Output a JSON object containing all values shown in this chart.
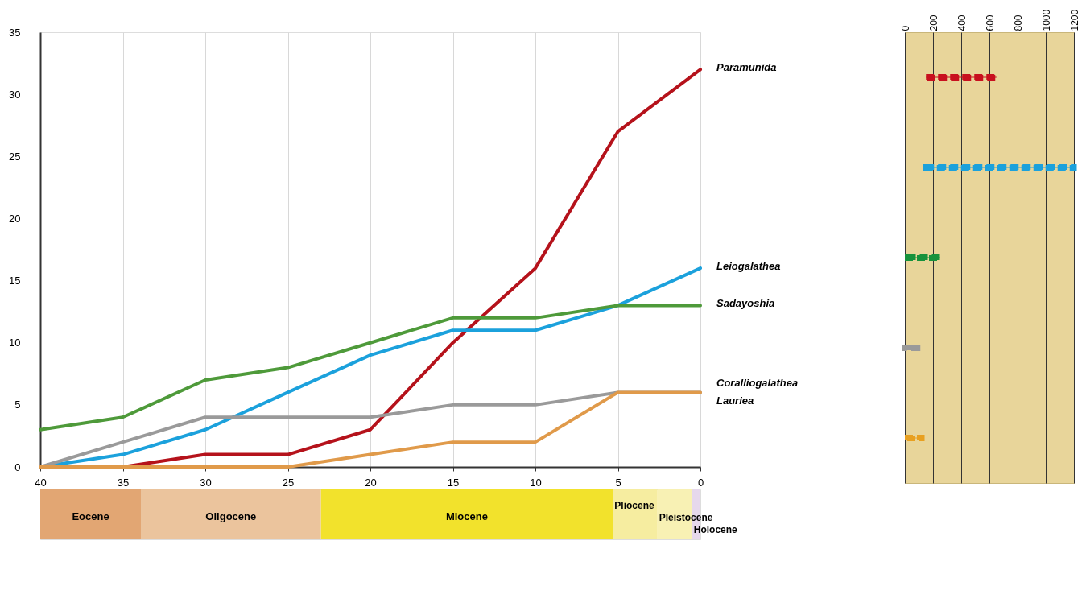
{
  "chart_data": [
    {
      "type": "line",
      "x": [
        40,
        35,
        30,
        25,
        20,
        15,
        10,
        5,
        0
      ],
      "xlim": [
        40,
        0
      ],
      "xticks": [
        40,
        35,
        30,
        25,
        20,
        15,
        10,
        5,
        0
      ],
      "ylim": [
        0,
        35
      ],
      "yticks": [
        0,
        5,
        10,
        15,
        20,
        25,
        30,
        35
      ],
      "grid": "x",
      "legend": false,
      "tick_labels": "y",
      "series": [
        {
          "name": "Paramunida",
          "color": "#b5121b",
          "values": [
            0,
            0,
            1,
            1,
            3,
            10,
            16,
            27,
            32
          ]
        },
        {
          "name": "Leiogalathea",
          "color": "#1ba1dc",
          "values": [
            0,
            1,
            3,
            6,
            9,
            11,
            11,
            13,
            16
          ]
        },
        {
          "name": "Sadayoshia",
          "color": "#4e9a3a",
          "values": [
            3,
            4,
            7,
            8,
            10,
            12,
            12,
            13,
            13
          ]
        },
        {
          "name": "Coralliogalathea",
          "color": "#9a9a9a",
          "values": [
            0,
            2,
            4,
            4,
            4,
            5,
            5,
            6,
            6
          ]
        },
        {
          "name": "Lauriea",
          "color": "#e09a4a",
          "values": [
            0,
            0,
            0,
            0,
            1,
            2,
            2,
            6,
            6
          ]
        }
      ]
    },
    {
      "type": "bar",
      "orientation": "horizontal",
      "stacked": true,
      "categories": [
        null
      ],
      "xlim": [
        40,
        0
      ],
      "xticks": [
        40,
        35,
        30,
        25,
        20,
        15,
        10,
        5,
        0
      ],
      "series": [
        {
          "name": "Holocene",
          "color": "#e6d8ec",
          "values": [
            0.5
          ]
        },
        {
          "name": "Pleistocene",
          "color": "#f8f1b4",
          "values": [
            2.1
          ]
        },
        {
          "name": "Pliocene",
          "color": "#f6eda0",
          "values": [
            2.7
          ]
        },
        {
          "name": "Miocene",
          "color": "#f2e22c",
          "values": [
            17.7
          ]
        },
        {
          "name": "Oligocene",
          "color": "#ebc49d",
          "values": [
            10.9
          ]
        },
        {
          "name": "Eocene",
          "color": "#e2a673",
          "values": [
            6.1
          ]
        }
      ]
    },
    {
      "type": "bar",
      "orientation": "horizontal",
      "categories": [
        null,
        null,
        null,
        null,
        null
      ],
      "base": [
        150,
        150,
        20,
        0,
        0
      ],
      "values": [
        500,
        1050,
        230,
        90,
        120
      ],
      "colors": [
        "#c8101e",
        "#1ba1dc",
        "#17923c",
        "#9a9a9a",
        "#e8a020"
      ],
      "line_style": "dashed",
      "xlim": [
        0,
        1200
      ],
      "xticks": [
        0,
        200,
        400,
        600,
        800,
        1000,
        1200
      ],
      "grid": "x"
    }
  ]
}
